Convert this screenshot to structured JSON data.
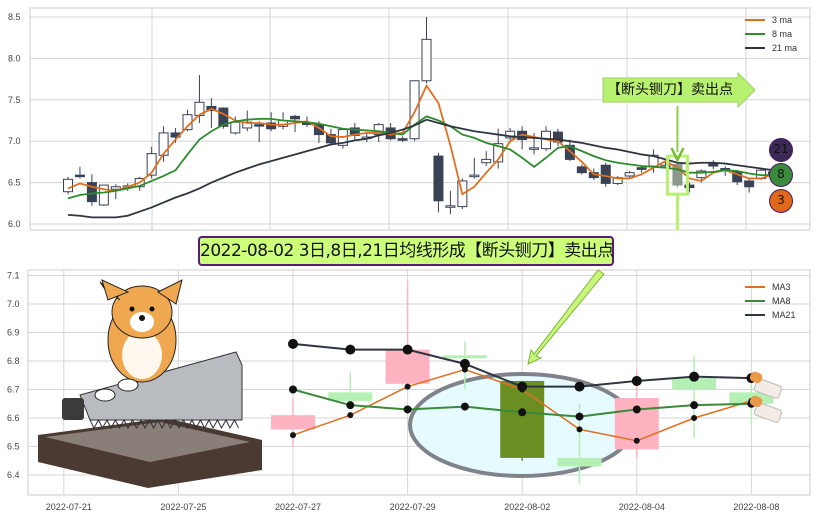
{
  "chart_data": [
    {
      "type": "candlestick",
      "title": "",
      "xlabel": "",
      "ylabel": "",
      "ylim": [
        5.98,
        8.58
      ],
      "yticks": [
        "6.0",
        "6.5",
        "7.0",
        "7.5",
        "8.0",
        "8.5"
      ],
      "grid": true,
      "legend_placement": "top-right",
      "up_style": "hollow",
      "down_style": "filled",
      "ohlc": [
        [
          6.39,
          6.57,
          6.36,
          6.54
        ],
        [
          6.59,
          6.69,
          6.55,
          6.58
        ],
        [
          6.5,
          6.6,
          6.22,
          6.27
        ],
        [
          6.23,
          6.47,
          6.22,
          6.47
        ],
        [
          6.42,
          6.48,
          6.3,
          6.45
        ],
        [
          6.46,
          6.49,
          6.4,
          6.46
        ],
        [
          6.45,
          6.57,
          6.4,
          6.55
        ],
        [
          6.59,
          6.93,
          6.55,
          6.85
        ],
        [
          6.83,
          7.18,
          6.75,
          7.1
        ],
        [
          7.1,
          7.16,
          6.98,
          7.05
        ],
        [
          7.14,
          7.38,
          7.12,
          7.32
        ],
        [
          7.31,
          7.8,
          7.22,
          7.47
        ],
        [
          7.42,
          7.52,
          7.16,
          7.37
        ],
        [
          7.4,
          7.41,
          7.15,
          7.18
        ],
        [
          7.1,
          7.3,
          7.08,
          7.23
        ],
        [
          7.16,
          7.37,
          7.12,
          7.23
        ],
        [
          7.2,
          7.24,
          6.99,
          7.19
        ],
        [
          7.22,
          7.35,
          7.12,
          7.15
        ],
        [
          7.18,
          7.35,
          7.14,
          7.25
        ],
        [
          7.3,
          7.32,
          7.11,
          7.27
        ],
        [
          7.22,
          7.3,
          7.17,
          7.21
        ],
        [
          7.2,
          7.24,
          6.98,
          7.08
        ],
        [
          7.08,
          7.15,
          6.96,
          6.98
        ],
        [
          6.95,
          7.16,
          6.91,
          7.14
        ],
        [
          7.16,
          7.22,
          7.02,
          7.07
        ],
        [
          7.05,
          7.1,
          6.99,
          7.05
        ],
        [
          7.08,
          7.22,
          6.99,
          7.2
        ],
        [
          7.16,
          7.22,
          7.01,
          7.03
        ],
        [
          7.03,
          7.06,
          6.99,
          7.02
        ],
        [
          7.03,
          7.73,
          7.0,
          7.73
        ],
        [
          7.73,
          8.5,
          7.7,
          8.23
        ],
        [
          6.82,
          6.86,
          6.14,
          6.28
        ],
        [
          6.22,
          6.4,
          6.12,
          6.22
        ],
        [
          6.21,
          6.55,
          6.18,
          6.52
        ],
        [
          6.59,
          6.8,
          6.55,
          6.59
        ],
        [
          6.74,
          6.88,
          6.7,
          6.78
        ],
        [
          6.75,
          7.15,
          6.67,
          6.97
        ],
        [
          7.04,
          7.16,
          6.98,
          7.12
        ],
        [
          7.12,
          7.18,
          6.9,
          7.02
        ],
        [
          6.92,
          7.1,
          6.84,
          6.92
        ],
        [
          6.91,
          7.18,
          6.88,
          7.12
        ],
        [
          7.11,
          7.15,
          6.94,
          6.99
        ],
        [
          6.95,
          7.02,
          6.76,
          6.78
        ],
        [
          6.69,
          6.72,
          6.6,
          6.62
        ],
        [
          6.62,
          6.67,
          6.53,
          6.56
        ],
        [
          6.71,
          6.74,
          6.45,
          6.49
        ],
        [
          6.49,
          6.58,
          6.47,
          6.56
        ],
        [
          6.58,
          6.64,
          6.55,
          6.62
        ],
        [
          6.68,
          6.7,
          6.62,
          6.66
        ],
        [
          6.7,
          6.9,
          6.62,
          6.83
        ],
        [
          6.71,
          6.75,
          6.68,
          6.71
        ],
        [
          6.72,
          6.75,
          6.44,
          6.47
        ],
        [
          6.47,
          6.5,
          6.38,
          6.44
        ],
        [
          6.56,
          6.66,
          6.5,
          6.64
        ],
        [
          6.73,
          6.77,
          6.66,
          6.7
        ],
        [
          6.67,
          6.7,
          6.58,
          6.65
        ],
        [
          6.63,
          6.65,
          6.47,
          6.51
        ],
        [
          6.52,
          6.55,
          6.38,
          6.45
        ],
        [
          6.55,
          6.67,
          6.53,
          6.65
        ],
        [
          6.63,
          6.66,
          6.55,
          6.58
        ]
      ],
      "series": [
        {
          "name": "3 ma",
          "color": "#e07020",
          "values": [
            6.43,
            6.49,
            6.45,
            6.42,
            6.4,
            6.45,
            6.5,
            6.62,
            6.85,
            7.02,
            7.18,
            7.32,
            7.39,
            7.33,
            7.25,
            7.22,
            7.22,
            7.2,
            7.2,
            7.22,
            7.24,
            7.16,
            7.06,
            7.05,
            7.08,
            7.1,
            7.1,
            7.08,
            7.1,
            7.35,
            7.67,
            7.46,
            6.95,
            6.36,
            6.45,
            6.62,
            6.78,
            7.0,
            7.08,
            7.05,
            7.02,
            7.0,
            6.88,
            6.75,
            6.6,
            6.58,
            6.55,
            6.55,
            6.6,
            6.68,
            6.76,
            6.68,
            6.55,
            6.52,
            6.62,
            6.65,
            6.6,
            6.55,
            6.55,
            6.6
          ]
        },
        {
          "name": "8 ma",
          "color": "#2e8b2e",
          "values": [
            6.31,
            6.35,
            6.37,
            6.38,
            6.4,
            6.43,
            6.46,
            6.52,
            6.58,
            6.65,
            6.84,
            7.02,
            7.12,
            7.2,
            7.24,
            7.26,
            7.27,
            7.27,
            7.25,
            7.24,
            7.23,
            7.21,
            7.18,
            7.15,
            7.14,
            7.13,
            7.12,
            7.1,
            7.08,
            7.2,
            7.3,
            7.25,
            7.18,
            7.08,
            7.04,
            6.98,
            6.94,
            6.9,
            6.8,
            6.69,
            6.8,
            6.92,
            6.94,
            6.88,
            6.82,
            6.77,
            6.74,
            6.72,
            6.7,
            6.69,
            6.68,
            6.66,
            6.62,
            6.62,
            6.63,
            6.65,
            6.64,
            6.61,
            6.59,
            6.59
          ]
        },
        {
          "name": "21 ma",
          "color": "#2f3640",
          "values": [
            6.11,
            6.1,
            6.08,
            6.08,
            6.08,
            6.1,
            6.15,
            6.2,
            6.26,
            6.32,
            6.37,
            6.43,
            6.5,
            6.56,
            6.62,
            6.67,
            6.72,
            6.76,
            6.8,
            6.84,
            6.88,
            6.92,
            6.96,
            6.98,
            7.01,
            7.03,
            7.07,
            7.1,
            7.14,
            7.19,
            7.26,
            7.22,
            7.18,
            7.15,
            7.12,
            7.1,
            7.08,
            7.06,
            7.05,
            7.04,
            7.03,
            7.02,
            7.0,
            6.98,
            6.95,
            6.92,
            6.9,
            6.87,
            6.84,
            6.82,
            6.78,
            6.74,
            6.73,
            6.74,
            6.74,
            6.73,
            6.71,
            6.69,
            6.67,
            6.65
          ]
        }
      ],
      "annotation": {
        "text": "【断头铡刀】卖出点",
        "candle_index": 51,
        "color": "#b8f070"
      },
      "end_markers": [
        {
          "label": "21",
          "color": "#3a2a55"
        },
        {
          "label": "8",
          "color": "#3a8a3a"
        },
        {
          "label": "3",
          "color": "#e06818"
        }
      ]
    },
    {
      "type": "candlestick",
      "title": "2022-08-02 3日,8日,21日均线形成【断头铡刀】卖出点",
      "xlabel": "",
      "ylabel": "",
      "ylim": [
        6.32,
        7.11
      ],
      "yticks": [
        "6.4",
        "6.5",
        "6.6",
        "6.7",
        "6.8",
        "6.9",
        "7.0",
        "7.1"
      ],
      "xticks": [
        {
          "index": -4,
          "label": "2022-07-21"
        },
        {
          "index": -2,
          "label": "2022-07-25"
        },
        {
          "index": 0,
          "label": "2022-07-27"
        },
        {
          "index": 2,
          "label": "2022-07-29"
        },
        {
          "index": 4,
          "label": "2022-08-02"
        },
        {
          "index": 6,
          "label": "2022-08-04"
        },
        {
          "index": 8,
          "label": "2022-08-08"
        }
      ],
      "grid": true,
      "legend_placement": "top-right",
      "up_color": "#ffb3c1",
      "down_color": "#b4f0b4",
      "highlight_color": "#6b8e23",
      "ohlc": [
        [
          6.56,
          6.67,
          6.5,
          6.61
        ],
        [
          6.69,
          6.76,
          6.63,
          6.66
        ],
        [
          6.72,
          7.08,
          6.7,
          6.84
        ],
        [
          6.82,
          6.87,
          6.7,
          6.81
        ],
        [
          6.73,
          6.73,
          6.45,
          6.46
        ],
        [
          6.46,
          6.65,
          6.37,
          6.43
        ],
        [
          6.49,
          6.77,
          6.46,
          6.67
        ],
        [
          6.74,
          6.82,
          6.53,
          6.7
        ],
        [
          6.69,
          6.72,
          6.58,
          6.65
        ]
      ],
      "highlight_index": 4,
      "series": [
        {
          "name": "MA3",
          "color": "#e07020",
          "values": [
            6.54,
            6.61,
            6.71,
            6.77,
            6.7,
            6.56,
            6.52,
            6.6,
            6.66
          ]
        },
        {
          "name": "MA8",
          "color": "#3a8a3a",
          "values": [
            6.7,
            6.645,
            6.63,
            6.64,
            6.62,
            6.605,
            6.63,
            6.645,
            6.65
          ]
        },
        {
          "name": "MA21",
          "color": "#2f3640",
          "values": [
            6.86,
            6.84,
            6.84,
            6.79,
            6.71,
            6.71,
            6.73,
            6.745,
            6.74
          ]
        }
      ]
    }
  ]
}
